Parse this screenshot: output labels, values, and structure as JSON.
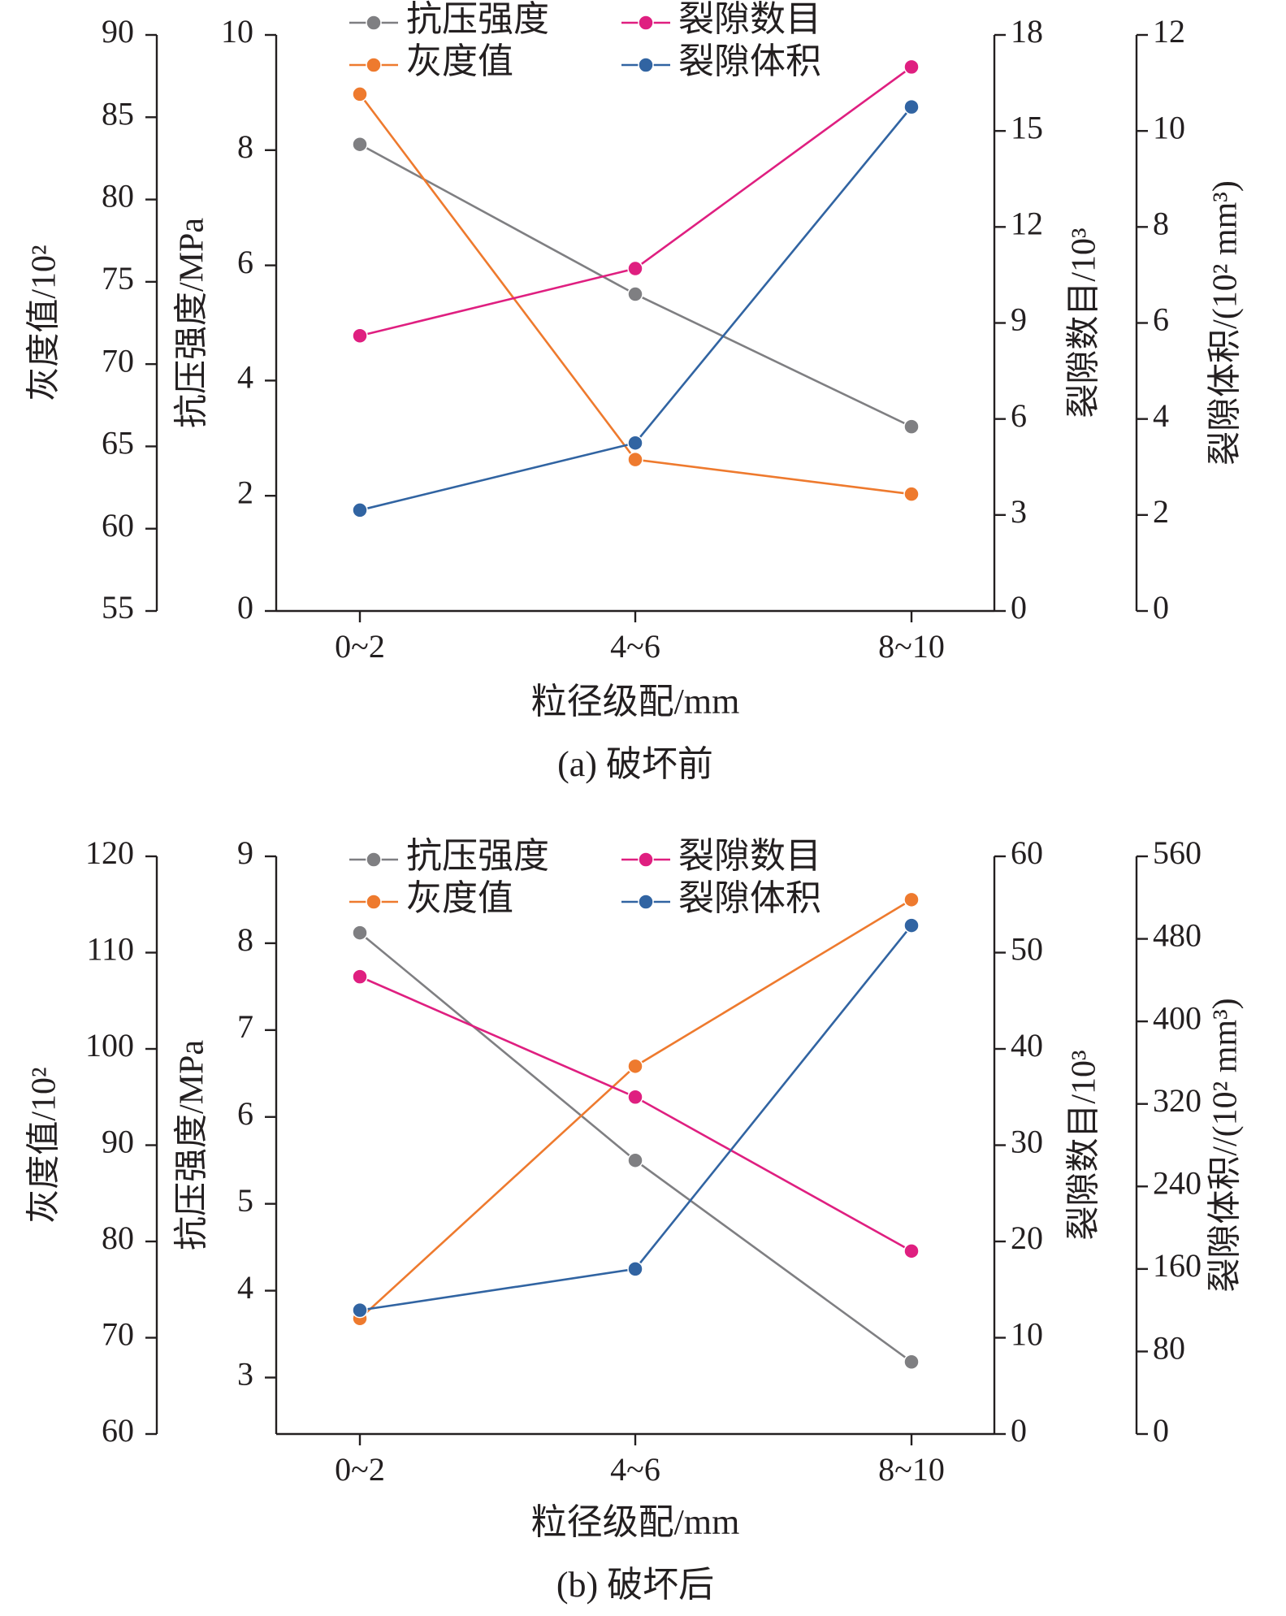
{
  "chart_data": [
    {
      "type": "line",
      "caption": "(a) 破坏前",
      "xlabel": "粒径级配/mm",
      "categories": [
        "0~2",
        "4~6",
        "8~10"
      ],
      "axes": {
        "gray": {
          "label": "灰度值/10²",
          "min": 55,
          "max": 90,
          "ticks": [
            "55",
            "60",
            "65",
            "70",
            "75",
            "80",
            "85",
            "90"
          ]
        },
        "strength": {
          "label": "抗压强度/MPa",
          "min": 0,
          "max": 10,
          "ticks": [
            "0",
            "2",
            "4",
            "6",
            "8",
            "10"
          ]
        },
        "count": {
          "label": "裂隙数目/10³",
          "min": 0,
          "max": 18,
          "ticks": [
            "0",
            "3",
            "6",
            "9",
            "12",
            "15",
            "18"
          ]
        },
        "volume": {
          "label": "裂隙体积/(10² mm³)",
          "min": 0,
          "max": 12,
          "ticks": [
            "0",
            "2",
            "4",
            "6",
            "8",
            "10",
            "12"
          ]
        }
      },
      "series": [
        {
          "name": "抗压强度",
          "axis": "strength",
          "color": "#7f7f82",
          "values": [
            8.1,
            5.5,
            3.2
          ]
        },
        {
          "name": "灰度值",
          "axis": "gray",
          "color": "#ee7a2e",
          "values": [
            86.4,
            64.2,
            62.1
          ]
        },
        {
          "name": "裂隙数目",
          "axis": "count",
          "color": "#df1f80",
          "values": [
            8.6,
            10.7,
            17.0
          ]
        },
        {
          "name": "裂隙体积",
          "axis": "volume",
          "color": "#3164a2",
          "values": [
            2.1,
            3.5,
            10.5
          ]
        }
      ],
      "legend": [
        "抗压强度",
        "裂隙数目",
        "灰度值",
        "裂隙体积"
      ]
    },
    {
      "type": "line",
      "caption": "(b) 破坏后",
      "xlabel": "粒径级配/mm",
      "categories": [
        "0~2",
        "4~6",
        "8~10"
      ],
      "axes": {
        "gray": {
          "label": "灰度值/10²",
          "min": 60,
          "max": 120,
          "ticks": [
            "60",
            "70",
            "80",
            "90",
            "100",
            "110",
            "120"
          ]
        },
        "strength": {
          "label": "抗压强度/MPa",
          "min": 2.35,
          "max": 9,
          "ticks": [
            "3",
            "4",
            "5",
            "6",
            "7",
            "8",
            "9"
          ]
        },
        "count": {
          "label": "裂隙数目/10³",
          "min": 0,
          "max": 60,
          "ticks": [
            "0",
            "10",
            "20",
            "30",
            "40",
            "50",
            "60"
          ]
        },
        "volume": {
          "label": "裂隙体积//(10² mm³)",
          "min": 0,
          "max": 560,
          "ticks": [
            "0",
            "80",
            "160",
            "240",
            "320",
            "400",
            "480",
            "560"
          ]
        }
      },
      "series": [
        {
          "name": "抗压强度",
          "axis": "strength",
          "color": "#7f7f82",
          "values": [
            8.12,
            5.5,
            3.18
          ]
        },
        {
          "name": "灰度值",
          "axis": "gray",
          "color": "#ee7a2e",
          "values": [
            72.0,
            98.2,
            115.5
          ]
        },
        {
          "name": "裂隙数目",
          "axis": "count",
          "color": "#df1f80",
          "values": [
            47.5,
            35.0,
            19.0
          ]
        },
        {
          "name": "裂隙体积",
          "axis": "volume",
          "color": "#3164a2",
          "values": [
            120,
            160,
            493
          ]
        }
      ],
      "legend": [
        "抗压强度",
        "裂隙数目",
        "灰度值",
        "裂隙体积"
      ]
    }
  ]
}
